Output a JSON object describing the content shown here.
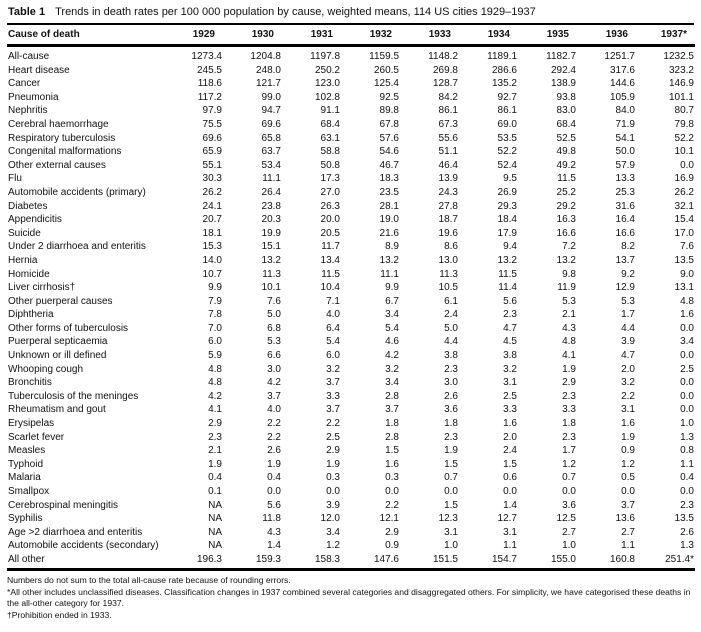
{
  "table": {
    "label": "Table 1",
    "title": "Trends in death rates per 100 000 population by cause, weighted means, 114 US cities 1929–1937",
    "columns": [
      "Cause of death",
      "1929",
      "1930",
      "1931",
      "1932",
      "1933",
      "1934",
      "1935",
      "1936",
      "1937*"
    ],
    "rows": [
      {
        "cause": "All-cause",
        "values": [
          "1273.4",
          "1204.8",
          "1197.8",
          "1159.5",
          "1148.2",
          "1189.1",
          "1182.7",
          "1251.7",
          "1232.5"
        ]
      },
      {
        "cause": "Heart disease",
        "values": [
          "245.5",
          "248.0",
          "250.2",
          "260.5",
          "269.8",
          "286.6",
          "292.4",
          "317.6",
          "323.2"
        ]
      },
      {
        "cause": "Cancer",
        "values": [
          "118.6",
          "121.7",
          "123.0",
          "125.4",
          "128.7",
          "135.2",
          "138.9",
          "144.6",
          "146.9"
        ]
      },
      {
        "cause": "Pneumonia",
        "values": [
          "117.2",
          "99.0",
          "102.8",
          "92.5",
          "84.2",
          "92.7",
          "93.8",
          "105.9",
          "101.1"
        ]
      },
      {
        "cause": "Nephritis",
        "values": [
          "97.9",
          "94.7",
          "91.1",
          "89.8",
          "86.1",
          "86.1",
          "83.0",
          "84.0",
          "80.7"
        ]
      },
      {
        "cause": "Cerebral haemorrhage",
        "values": [
          "75.5",
          "69.6",
          "68.4",
          "67.8",
          "67.3",
          "69.0",
          "68.4",
          "71.9",
          "79.8"
        ]
      },
      {
        "cause": "Respiratory tuberculosis",
        "values": [
          "69.6",
          "65.8",
          "63.1",
          "57.6",
          "55.6",
          "53.5",
          "52.5",
          "54.1",
          "52.2"
        ]
      },
      {
        "cause": "Congenital malformations",
        "values": [
          "65.9",
          "63.7",
          "58.8",
          "54.6",
          "51.1",
          "52.2",
          "49.8",
          "50.0",
          "10.1"
        ]
      },
      {
        "cause": "Other external causes",
        "values": [
          "55.1",
          "53.4",
          "50.8",
          "46.7",
          "46.4",
          "52.4",
          "49.2",
          "57.9",
          "0.0"
        ]
      },
      {
        "cause": "Flu",
        "values": [
          "30.3",
          "11.1",
          "17.3",
          "18.3",
          "13.9",
          "9.5",
          "11.5",
          "13.3",
          "16.9"
        ]
      },
      {
        "cause": "Automobile accidents (primary)",
        "values": [
          "26.2",
          "26.4",
          "27.0",
          "23.5",
          "24.3",
          "26.9",
          "25.2",
          "25.3",
          "26.2"
        ]
      },
      {
        "cause": "Diabetes",
        "values": [
          "24.1",
          "23.8",
          "26.3",
          "28.1",
          "27.8",
          "29.3",
          "29.2",
          "31.6",
          "32.1"
        ]
      },
      {
        "cause": "Appendicitis",
        "values": [
          "20.7",
          "20.3",
          "20.0",
          "19.0",
          "18.7",
          "18.4",
          "16.3",
          "16.4",
          "15.4"
        ]
      },
      {
        "cause": "Suicide",
        "values": [
          "18.1",
          "19.9",
          "20.5",
          "21.6",
          "19.6",
          "17.9",
          "16.6",
          "16.6",
          "17.0"
        ]
      },
      {
        "cause": "Under 2 diarrhoea and enteritis",
        "values": [
          "15.3",
          "15.1",
          "11.7",
          "8.9",
          "8.6",
          "9.4",
          "7.2",
          "8.2",
          "7.6"
        ]
      },
      {
        "cause": "Hernia",
        "values": [
          "14.0",
          "13.2",
          "13.4",
          "13.2",
          "13.0",
          "13.2",
          "13.2",
          "13.7",
          "13.5"
        ]
      },
      {
        "cause": "Homicide",
        "values": [
          "10.7",
          "11.3",
          "11.5",
          "11.1",
          "11.3",
          "11.5",
          "9.8",
          "9.2",
          "9.0"
        ]
      },
      {
        "cause": "Liver cirrhosis†",
        "values": [
          "9.9",
          "10.1",
          "10.4",
          "9.9",
          "10.5",
          "11.4",
          "11.9",
          "12.9",
          "13.1"
        ]
      },
      {
        "cause": "Other puerperal causes",
        "values": [
          "7.9",
          "7.6",
          "7.1",
          "6.7",
          "6.1",
          "5.6",
          "5.3",
          "5.3",
          "4.8"
        ]
      },
      {
        "cause": "Diphtheria",
        "values": [
          "7.8",
          "5.0",
          "4.0",
          "3.4",
          "2.4",
          "2.3",
          "2.1",
          "1.7",
          "1.6"
        ]
      },
      {
        "cause": "Other forms of tuberculosis",
        "values": [
          "7.0",
          "6.8",
          "6.4",
          "5.4",
          "5.0",
          "4.7",
          "4.3",
          "4.4",
          "0.0"
        ]
      },
      {
        "cause": "Puerperal septicaemia",
        "values": [
          "6.0",
          "5.3",
          "5.4",
          "4.6",
          "4.4",
          "4.5",
          "4.8",
          "3.9",
          "3.4"
        ]
      },
      {
        "cause": "Unknown or ill defined",
        "values": [
          "5.9",
          "6.6",
          "6.0",
          "4.2",
          "3.8",
          "3.8",
          "4.1",
          "4.7",
          "0.0"
        ]
      },
      {
        "cause": "Whooping cough",
        "values": [
          "4.8",
          "3.0",
          "3.2",
          "3.2",
          "2.3",
          "3.2",
          "1.9",
          "2.0",
          "2.5"
        ]
      },
      {
        "cause": "Bronchitis",
        "values": [
          "4.8",
          "4.2",
          "3.7",
          "3.4",
          "3.0",
          "3.1",
          "2.9",
          "3.2",
          "0.0"
        ]
      },
      {
        "cause": "Tuberculosis of the meninges",
        "values": [
          "4.2",
          "3.7",
          "3.3",
          "2.8",
          "2.6",
          "2.5",
          "2.3",
          "2.2",
          "0.0"
        ]
      },
      {
        "cause": "Rheumatism and gout",
        "values": [
          "4.1",
          "4.0",
          "3.7",
          "3.7",
          "3.6",
          "3.3",
          "3.3",
          "3.1",
          "0.0"
        ]
      },
      {
        "cause": "Erysipelas",
        "values": [
          "2.9",
          "2.2",
          "2.2",
          "1.8",
          "1.8",
          "1.6",
          "1.8",
          "1.6",
          "1.0"
        ]
      },
      {
        "cause": "Scarlet fever",
        "values": [
          "2.3",
          "2.2",
          "2.5",
          "2.8",
          "2.3",
          "2.0",
          "2.3",
          "1.9",
          "1.3"
        ]
      },
      {
        "cause": "Measles",
        "values": [
          "2.1",
          "2.6",
          "2.9",
          "1.5",
          "1.9",
          "2.4",
          "1.7",
          "0.9",
          "0.8"
        ]
      },
      {
        "cause": "Typhoid",
        "values": [
          "1.9",
          "1.9",
          "1.9",
          "1.6",
          "1.5",
          "1.5",
          "1.2",
          "1.2",
          "1.1"
        ]
      },
      {
        "cause": "Malaria",
        "values": [
          "0.4",
          "0.4",
          "0.3",
          "0.3",
          "0.7",
          "0.6",
          "0.7",
          "0.5",
          "0.4"
        ]
      },
      {
        "cause": "Smallpox",
        "values": [
          "0.1",
          "0.0",
          "0.0",
          "0.0",
          "0.0",
          "0.0",
          "0.0",
          "0.0",
          "0.0"
        ]
      },
      {
        "cause": "Cerebrospinal meningitis",
        "values": [
          "NA",
          "5.6",
          "3.9",
          "2.2",
          "1.5",
          "1.4",
          "3.6",
          "3.7",
          "2.3"
        ]
      },
      {
        "cause": "Syphilis",
        "values": [
          "NA",
          "11.8",
          "12.0",
          "12.1",
          "12.3",
          "12.7",
          "12.5",
          "13.6",
          "13.5"
        ]
      },
      {
        "cause": "Age >2 diarrhoea and enteritis",
        "values": [
          "NA",
          "4.3",
          "3.4",
          "2.9",
          "3.1",
          "3.1",
          "2.7",
          "2.7",
          "2.6"
        ]
      },
      {
        "cause": "Automobile accidents (secondary)",
        "values": [
          "NA",
          "1.4",
          "1.2",
          "0.9",
          "1.0",
          "1.1",
          "1.0",
          "1.1",
          "1.3"
        ]
      },
      {
        "cause": "All other",
        "values": [
          "196.3",
          "159.3",
          "158.3",
          "147.6",
          "151.5",
          "154.7",
          "155.0",
          "160.8",
          "251.4*"
        ]
      }
    ]
  },
  "footnotes": [
    "Numbers do not sum to the total all-cause rate because of rounding errors.",
    "*All other includes unclassified diseases. Classification changes in 1937 combined several categories and disaggregated others. For simplicity, we have categorised these deaths in the all-other category for 1937.",
    "†Prohibition ended in 1933."
  ]
}
